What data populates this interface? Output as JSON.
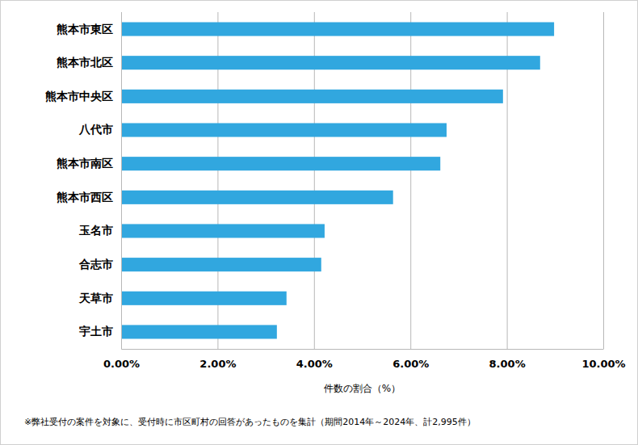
{
  "chart_data": {
    "type": "bar",
    "orientation": "horizontal",
    "categories": [
      "熊本市東区",
      "熊本市北区",
      "熊本市中央区",
      "八代市",
      "熊本市南区",
      "熊本市西区",
      "玉名市",
      "合志市",
      "天草市",
      "宇土市"
    ],
    "values": [
      8.98,
      8.69,
      7.92,
      6.75,
      6.62,
      5.64,
      4.22,
      4.15,
      3.43,
      3.23
    ],
    "color": "#31a7df",
    "x_label": "件数の割合（%）",
    "annotations": [
      "※弊社受付の案件を対象に、受付時に市区町村の回答があったものを集計（期間2014年～2024年、計2,995件）"
    ],
    "xlim": [
      0,
      10
    ],
    "xticks": [
      {
        "value": 0,
        "label": "0.00%"
      },
      {
        "value": 2,
        "label": "2.00%"
      },
      {
        "value": 4,
        "label": "4.00%"
      },
      {
        "value": 6,
        "label": "6.00%"
      },
      {
        "value": 8,
        "label": "8.00%"
      },
      {
        "value": 10,
        "label": "10.00%"
      }
    ],
    "grid": true
  }
}
